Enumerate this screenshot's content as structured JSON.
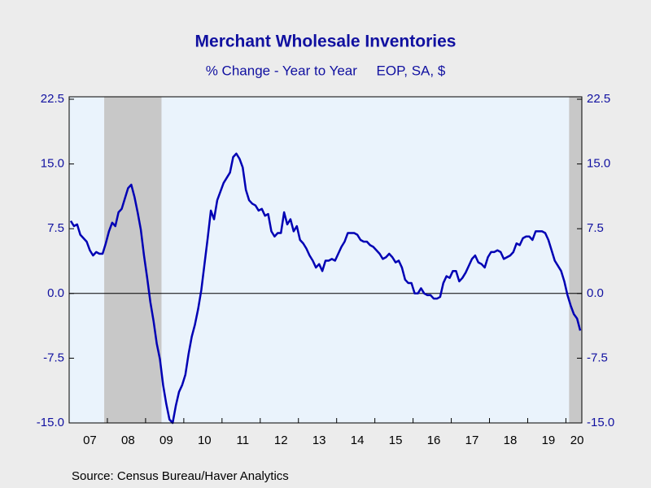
{
  "chart_data": {
    "type": "line",
    "title": "Merchant Wholesale Inventories",
    "subtitle": "% Change - Year to Year     EOP, SA, $",
    "source": "Source:  Census Bureau/Haver Analytics",
    "categories": [
      null,
      null,
      null,
      null,
      null,
      null,
      "07",
      null,
      null,
      null,
      null,
      null,
      null,
      null,
      null,
      null,
      null,
      null,
      "08",
      null,
      null,
      null,
      null,
      null,
      null,
      null,
      null,
      null,
      null,
      null,
      "09",
      null,
      null,
      null,
      null,
      null,
      null,
      null,
      null,
      null,
      null,
      null,
      "10",
      null,
      null,
      null,
      null,
      null,
      null,
      null,
      null,
      null,
      null,
      null,
      "11",
      null,
      null,
      null,
      null,
      null,
      null,
      null,
      null,
      null,
      null,
      null,
      "12",
      null,
      null,
      null,
      null,
      null,
      null,
      null,
      null,
      null,
      null,
      null,
      "13",
      null,
      null,
      null,
      null,
      null,
      null,
      null,
      null,
      null,
      null,
      null,
      "14",
      null,
      null,
      null,
      null,
      null,
      null,
      null,
      null,
      null,
      null,
      null,
      "15",
      null,
      null,
      null,
      null,
      null,
      null,
      null,
      null,
      null,
      null,
      null,
      "16",
      null,
      null,
      null,
      null,
      null,
      null,
      null,
      null,
      null,
      null,
      null,
      "17",
      null,
      null,
      null,
      null,
      null,
      null,
      null,
      null,
      null,
      null,
      null,
      "18",
      null,
      null,
      null,
      null,
      null,
      null,
      null,
      null,
      null,
      null,
      null,
      "19",
      null,
      null,
      null,
      null,
      null,
      null,
      null,
      null,
      "20",
      null
    ],
    "series": [
      {
        "name": "Merchant Wholesale Inventories",
        "color": "#0000b4",
        "values": [
          8.4,
          7.8,
          8.0,
          6.8,
          6.4,
          6.0,
          5.0,
          4.4,
          4.8,
          4.6,
          4.6,
          5.8,
          7.2,
          8.2,
          7.8,
          9.4,
          9.8,
          11.0,
          12.2,
          12.6,
          11.2,
          9.4,
          7.4,
          4.4,
          1.8,
          -1.0,
          -3.2,
          -5.8,
          -7.6,
          -10.6,
          -12.8,
          -14.6,
          -15.0,
          -13.0,
          -11.4,
          -10.6,
          -9.4,
          -7.0,
          -5.0,
          -3.6,
          -1.8,
          0.4,
          3.4,
          6.4,
          9.6,
          8.6,
          10.8,
          11.8,
          12.8,
          13.4,
          14.0,
          15.8,
          16.2,
          15.6,
          14.6,
          12.0,
          10.8,
          10.4,
          10.2,
          9.6,
          9.8,
          9.0,
          9.2,
          7.2,
          6.6,
          7.0,
          7.0,
          9.4,
          8.0,
          8.6,
          7.2,
          7.8,
          6.2,
          5.8,
          5.2,
          4.4,
          3.8,
          3.0,
          3.4,
          2.6,
          3.8,
          3.8,
          4.0,
          3.8,
          4.6,
          5.4,
          6.0,
          7.0,
          7.0,
          7.0,
          6.8,
          6.2,
          6.0,
          6.0,
          5.6,
          5.4,
          5.0,
          4.6,
          4.0,
          4.2,
          4.6,
          4.2,
          3.6,
          3.8,
          3.0,
          1.6,
          1.2,
          1.2,
          0.0,
          0.0,
          0.6,
          0.0,
          -0.2,
          -0.2,
          -0.6,
          -0.6,
          -0.4,
          1.2,
          2.0,
          1.8,
          2.6,
          2.6,
          1.4,
          1.8,
          2.4,
          3.2,
          4.0,
          4.4,
          3.6,
          3.4,
          3.0,
          4.2,
          4.8,
          4.8,
          5.0,
          4.8,
          4.0,
          4.2,
          4.4,
          4.8,
          5.8,
          5.6,
          6.4,
          6.6,
          6.6,
          6.2,
          7.2,
          7.2,
          7.2,
          7.0,
          6.2,
          5.0,
          3.8,
          3.2,
          2.6,
          1.4,
          -0.2,
          -1.4,
          -2.4,
          -2.9,
          -4.3
        ]
      }
    ],
    "ylim": [
      -15,
      22.5
    ],
    "yticks": [
      {
        "value": -15,
        "label": "-15.0"
      },
      {
        "value": -7.5,
        "label": "-7.5"
      },
      {
        "value": 0,
        "label": "0.0"
      },
      {
        "value": 7.5,
        "label": "7.5"
      },
      {
        "value": 15,
        "label": "15.0"
      },
      {
        "value": 22.5,
        "label": "22.5"
      }
    ],
    "y2lim": [
      -15,
      22.5
    ],
    "y2ticks": [
      {
        "value": -15,
        "label": "-15.0"
      },
      {
        "value": -7.5,
        "label": "-7.5"
      },
      {
        "value": 0,
        "label": "0.0"
      },
      {
        "value": 7.5,
        "label": "7.5"
      },
      {
        "value": 15,
        "label": "15.0"
      },
      {
        "value": 22.5,
        "label": "22.5"
      }
    ],
    "plot_background": "#eaf3fc",
    "zero_line": true
  }
}
